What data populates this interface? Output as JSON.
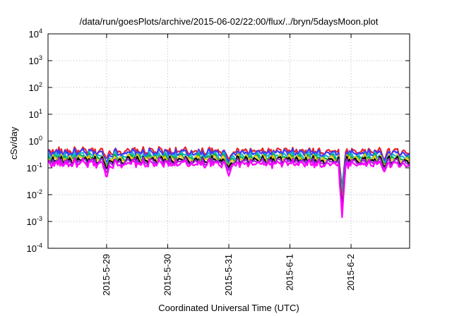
{
  "chart_data": {
    "type": "line",
    "title": "/data/run/goesPlots/archive/2015-06-02/22:00/flux/../bryn/5daysMoon.plot",
    "xlabel": "Coordinated Universal Time (UTC)",
    "ylabel": "cSv/day",
    "x_range": [
      "2015-05-28T01:00",
      "2015-06-02T23:00"
    ],
    "x_ticks": [
      {
        "label": "2015-5-29",
        "value": "2015-05-29T00:00"
      },
      {
        "label": "2015-5-30",
        "value": "2015-05-30T00:00"
      },
      {
        "label": "2015-5-31",
        "value": "2015-05-31T00:00"
      },
      {
        "label": "2015-6-1",
        "value": "2015-06-01T00:00"
      },
      {
        "label": "2015-6-2",
        "value": "2015-06-02T00:00"
      }
    ],
    "y_scale": "log",
    "ylim": [
      0.0001,
      10000
    ],
    "y_ticks": [
      {
        "base": "10",
        "exp": "-4",
        "value": 0.0001
      },
      {
        "base": "10",
        "exp": "-3",
        "value": 0.001
      },
      {
        "base": "10",
        "exp": "-2",
        "value": 0.01
      },
      {
        "base": "10",
        "exp": "-1",
        "value": 0.1
      },
      {
        "base": "10",
        "exp": "0",
        "value": 1
      },
      {
        "base": "10",
        "exp": "1",
        "value": 10
      },
      {
        "base": "10",
        "exp": "2",
        "value": 100
      },
      {
        "base": "10",
        "exp": "3",
        "value": 1000
      },
      {
        "base": "10",
        "exp": "4",
        "value": 10000
      }
    ],
    "grid": true,
    "legend": "none",
    "series": [
      {
        "color": "#e8232f",
        "level": 0.42,
        "dips": [
          {
            "x": "2015-05-29T00:00",
            "y": 0.22
          },
          {
            "x": "2015-05-31T00:00",
            "y": 0.2
          },
          {
            "x": "2015-06-01T20:30",
            "y": 0.015
          },
          {
            "x": "2015-06-02T13:00",
            "y": 0.2
          }
        ]
      },
      {
        "color": "#3b3bff",
        "level": 0.36,
        "dips": [
          {
            "x": "2015-05-29T00:00",
            "y": 0.15
          },
          {
            "x": "2015-05-31T00:00",
            "y": 0.16
          },
          {
            "x": "2015-06-01T20:30",
            "y": 0.012
          },
          {
            "x": "2015-06-02T13:00",
            "y": 0.18
          }
        ]
      },
      {
        "color": "#19b4c8",
        "level": 0.28,
        "dips": [
          {
            "x": "2015-05-29T00:00",
            "y": 0.12
          },
          {
            "x": "2015-05-31T00:00",
            "y": 0.13
          },
          {
            "x": "2015-06-01T20:30",
            "y": 0.009
          },
          {
            "x": "2015-06-02T13:00",
            "y": 0.15
          }
        ]
      },
      {
        "color": "#00b050",
        "level": 0.24,
        "dips": [
          {
            "x": "2015-05-29T00:00",
            "y": 0.11
          },
          {
            "x": "2015-05-31T00:00",
            "y": 0.12
          },
          {
            "x": "2015-06-01T20:30",
            "y": 0.005
          },
          {
            "x": "2015-06-02T13:00",
            "y": 0.13
          }
        ]
      },
      {
        "color": "#f0c419",
        "level": 0.22,
        "dips": [
          {
            "x": "2015-05-29T00:00",
            "y": 0.1
          },
          {
            "x": "2015-05-31T00:00",
            "y": 0.11
          },
          {
            "x": "2015-06-01T20:30",
            "y": 0.004
          },
          {
            "x": "2015-06-02T13:00",
            "y": 0.12
          }
        ]
      },
      {
        "color": "#000000",
        "level": 0.19,
        "dips": [
          {
            "x": "2015-05-29T00:00",
            "y": 0.09
          },
          {
            "x": "2015-05-31T00:00",
            "y": 0.1
          },
          {
            "x": "2015-06-01T20:30",
            "y": 0.003
          },
          {
            "x": "2015-06-02T13:00",
            "y": 0.11
          }
        ]
      },
      {
        "color": "#9a2bd6",
        "level": 0.17,
        "dips": [
          {
            "x": "2015-05-29T00:00",
            "y": 0.06
          },
          {
            "x": "2015-05-31T00:00",
            "y": 0.08
          },
          {
            "x": "2015-06-01T20:30",
            "y": 0.002
          },
          {
            "x": "2015-06-02T13:00",
            "y": 0.09
          }
        ]
      },
      {
        "color": "#ff00ff",
        "level": 0.14,
        "dips": [
          {
            "x": "2015-05-29T00:00",
            "y": 0.04
          },
          {
            "x": "2015-05-31T00:00",
            "y": 0.05
          },
          {
            "x": "2015-06-01T20:30",
            "y": 0.0014
          },
          {
            "x": "2015-06-02T13:00",
            "y": 0.07
          }
        ]
      }
    ]
  }
}
